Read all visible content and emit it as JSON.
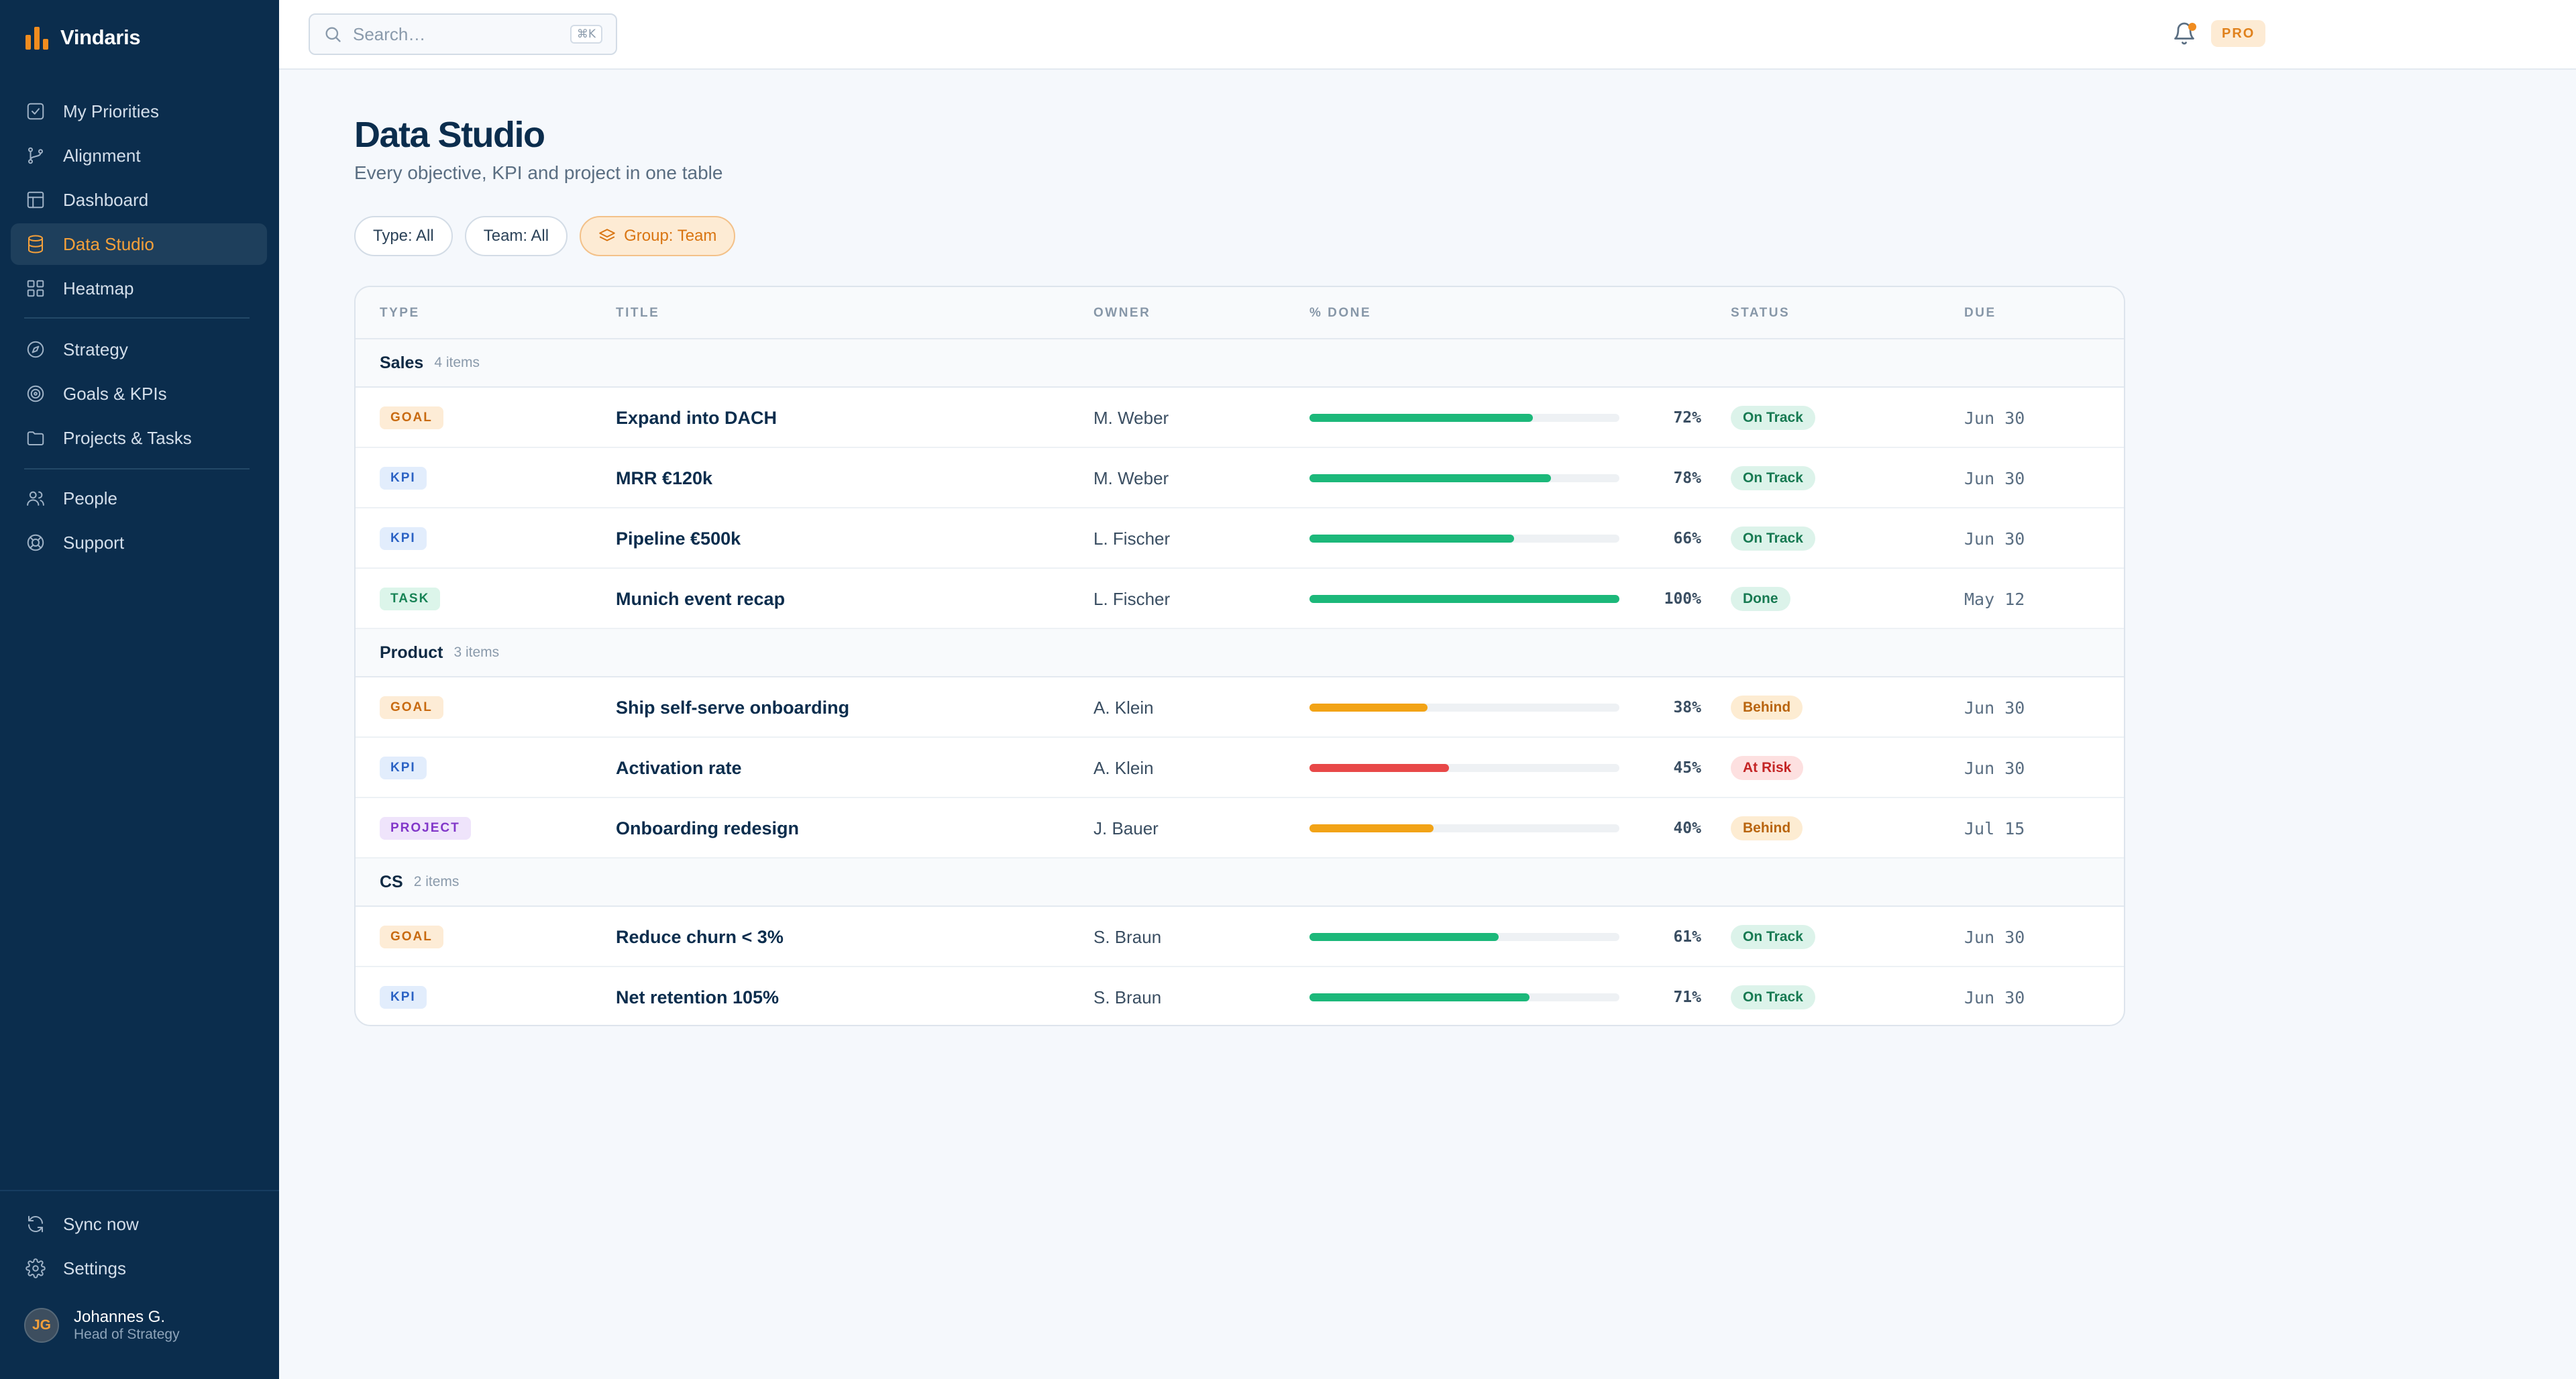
{
  "app": {
    "name": "Vindaris"
  },
  "colors": {
    "accent": "#f08c1f",
    "sidebar_bg": "#0b2d4d",
    "on_track": "#1cb87a",
    "behind": "#f2a316",
    "at_risk": "#e84848"
  },
  "sidebar": {
    "items": [
      {
        "label": "My Priorities",
        "icon": "checklist-icon"
      },
      {
        "label": "Alignment",
        "icon": "git-branch-icon"
      },
      {
        "label": "Dashboard",
        "icon": "layout-icon"
      },
      {
        "label": "Data Studio",
        "icon": "database-icon",
        "active": true
      },
      {
        "label": "Heatmap",
        "icon": "grid-icon"
      },
      {
        "label": "Strategy",
        "icon": "compass-icon"
      },
      {
        "label": "Goals & KPIs",
        "icon": "target-icon"
      },
      {
        "label": "Projects & Tasks",
        "icon": "folder-icon"
      },
      {
        "label": "People",
        "icon": "users-icon"
      },
      {
        "label": "Support",
        "icon": "lifebuoy-icon"
      }
    ],
    "bottom": [
      {
        "label": "Sync now",
        "icon": "refresh-icon"
      },
      {
        "label": "Settings",
        "icon": "gear-icon"
      }
    ],
    "user": {
      "initials": "JG",
      "name": "Johannes G.",
      "role": "Head of Strategy"
    }
  },
  "topbar": {
    "search_placeholder": "Search…",
    "search_shortcut": "⌘K",
    "plan_badge": "PRO"
  },
  "page": {
    "title": "Data Studio",
    "subtitle": "Every objective, KPI and project in one table"
  },
  "filters": {
    "type": "Type: All",
    "team": "Team: All",
    "group": "Group: Team"
  },
  "table": {
    "columns": {
      "type": "TYPE",
      "title": "TITLE",
      "owner": "OWNER",
      "done": "% DONE",
      "status": "STATUS",
      "due": "DUE"
    },
    "groups": [
      {
        "name": "Sales",
        "count": "4 items",
        "rows": [
          {
            "type": "GOAL",
            "title": "Expand into DACH",
            "owner": "M. Weber",
            "percent": 72,
            "percent_label": "72%",
            "status": "On Track",
            "due": "Jun 30"
          },
          {
            "type": "KPI",
            "title": "MRR €120k",
            "owner": "M. Weber",
            "percent": 78,
            "percent_label": "78%",
            "status": "On Track",
            "due": "Jun 30"
          },
          {
            "type": "KPI",
            "title": "Pipeline €500k",
            "owner": "L. Fischer",
            "percent": 66,
            "percent_label": "66%",
            "status": "On Track",
            "due": "Jun 30"
          },
          {
            "type": "TASK",
            "title": "Munich event recap",
            "owner": "L. Fischer",
            "percent": 100,
            "percent_label": "100%",
            "status": "Done",
            "due": "May 12"
          }
        ]
      },
      {
        "name": "Product",
        "count": "3 items",
        "rows": [
          {
            "type": "GOAL",
            "title": "Ship self-serve onboarding",
            "owner": "A. Klein",
            "percent": 38,
            "percent_label": "38%",
            "status": "Behind",
            "due": "Jun 30"
          },
          {
            "type": "KPI",
            "title": "Activation rate",
            "owner": "A. Klein",
            "percent": 45,
            "percent_label": "45%",
            "status": "At Risk",
            "due": "Jun 30"
          },
          {
            "type": "PROJECT",
            "title": "Onboarding redesign",
            "owner": "J. Bauer",
            "percent": 40,
            "percent_label": "40%",
            "status": "Behind",
            "due": "Jul 15"
          }
        ]
      },
      {
        "name": "CS",
        "count": "2 items",
        "rows": [
          {
            "type": "GOAL",
            "title": "Reduce churn < 3%",
            "owner": "S. Braun",
            "percent": 61,
            "percent_label": "61%",
            "status": "On Track",
            "due": "Jun 30"
          },
          {
            "type": "KPI",
            "title": "Net retention 105%",
            "owner": "S. Braun",
            "percent": 71,
            "percent_label": "71%",
            "status": "On Track",
            "due": "Jun 30"
          }
        ]
      }
    ]
  }
}
